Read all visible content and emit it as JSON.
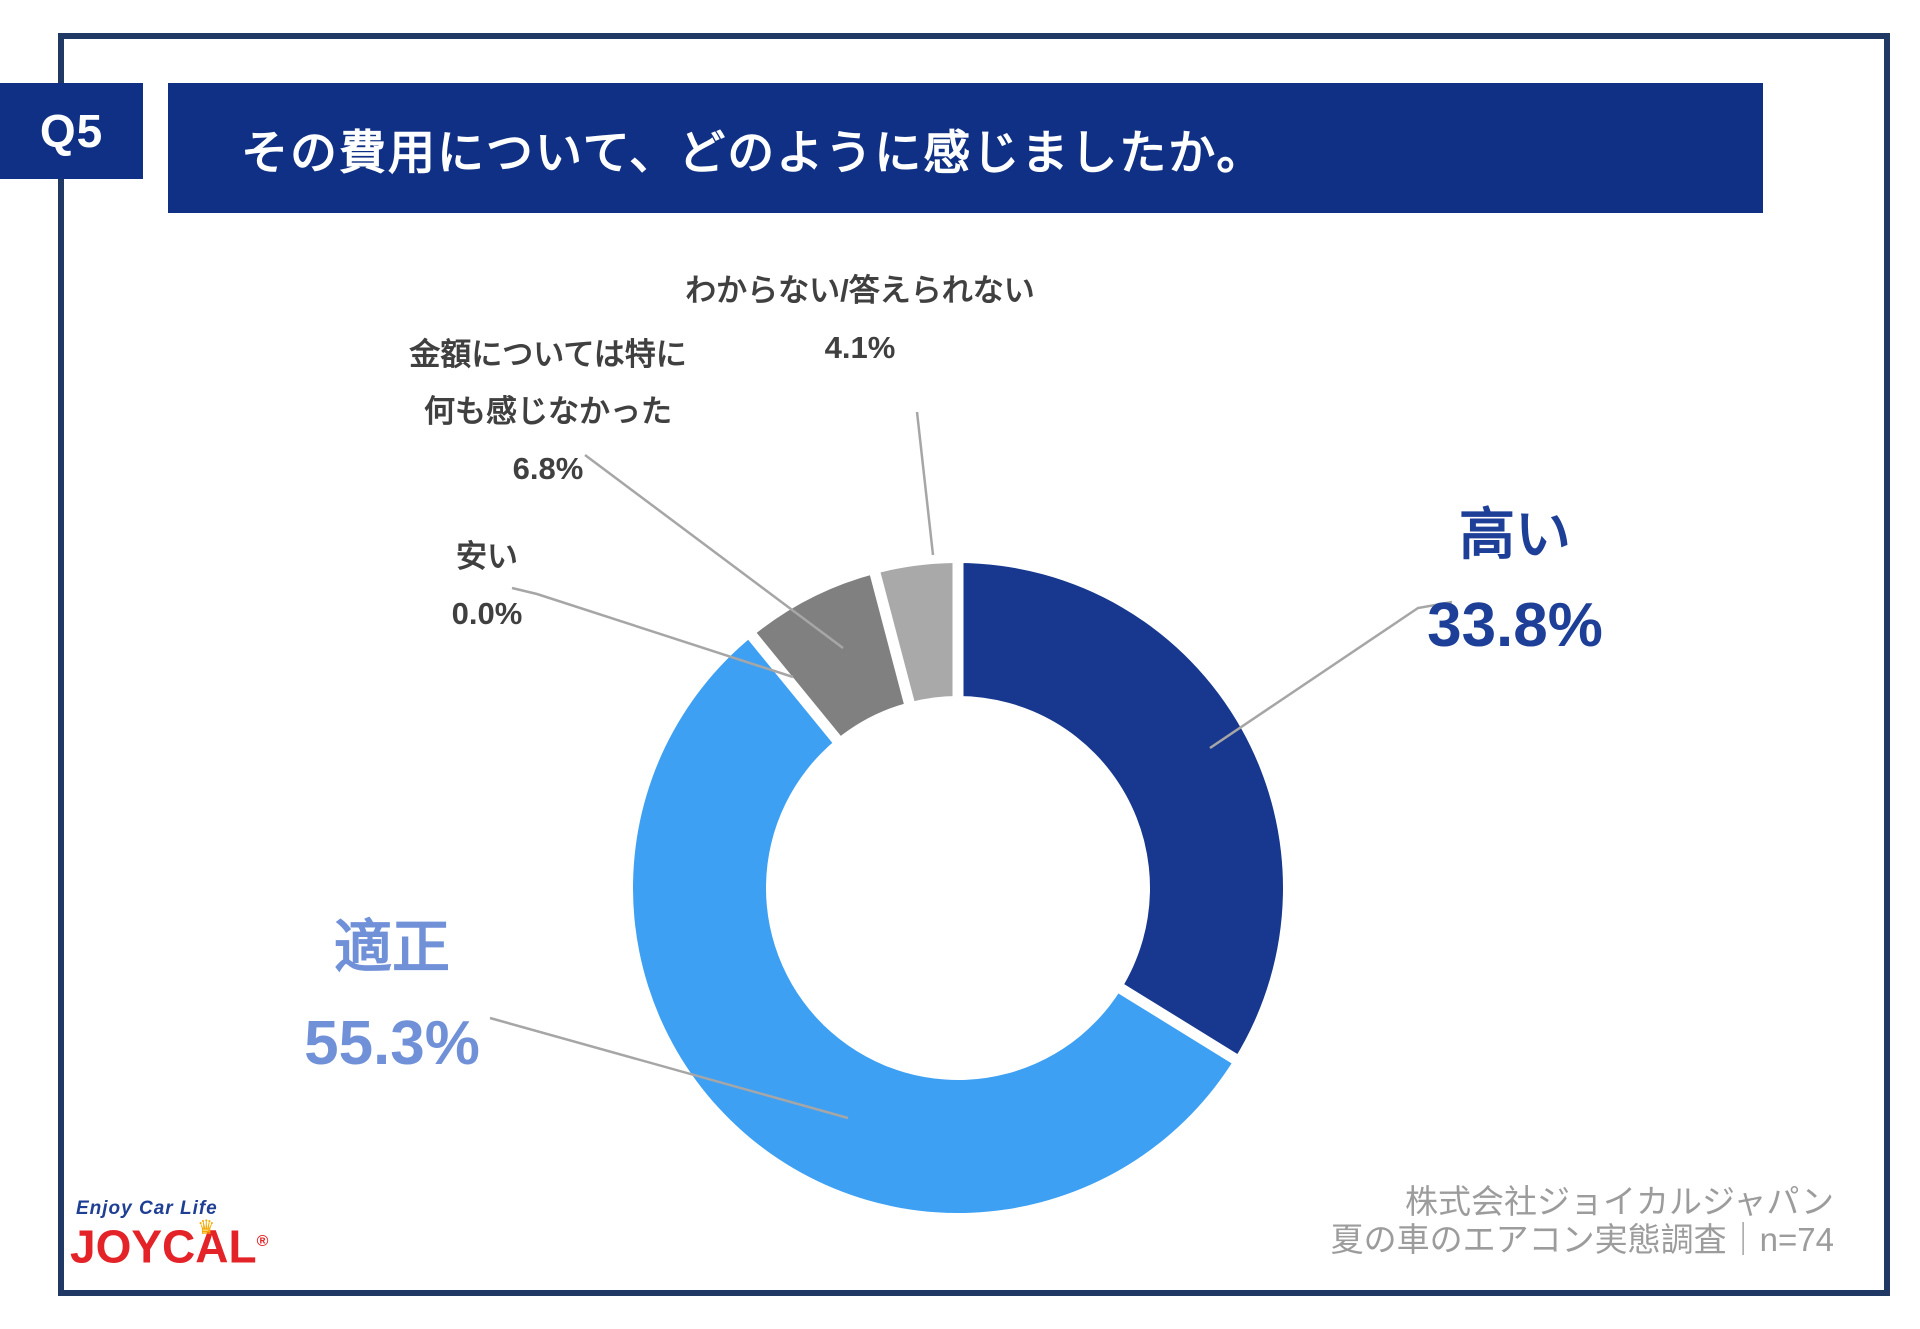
{
  "header": {
    "q_label": "Q5",
    "title": "その費用について、どのように感じましたか。"
  },
  "chart_data": {
    "type": "pie",
    "donut": true,
    "title": "その費用について、どのように感じましたか。",
    "unit": "%",
    "start_angle_deg": 0,
    "direction": "clockwise",
    "segments": [
      {
        "label": "高い",
        "value": 33.8,
        "color": "#17388E"
      },
      {
        "label": "適正",
        "value": 55.3,
        "color": "#3EA0F3"
      },
      {
        "label": "安い",
        "value": 0.0,
        "color": "#BFBFBF"
      },
      {
        "label": "金額については特に何も感じなかった",
        "value": 6.8,
        "color": "#808080"
      },
      {
        "label": "わからない/答えられない",
        "value": 4.1,
        "color": "#A9A9A9"
      }
    ]
  },
  "callouts": {
    "wakaranai": {
      "label": "わからない/答えられない",
      "value": "4.1%"
    },
    "kingaku": {
      "label_line1": "金額については特に",
      "label_line2": "何も感じなかった",
      "value": "6.8%"
    },
    "yasui": {
      "label": "安い",
      "value": "0.0%"
    },
    "takai": {
      "label": "高い",
      "value": "33.8%"
    },
    "tekisei": {
      "label": "適正",
      "value": "55.3%"
    }
  },
  "footer": {
    "credit_line1": "株式会社ジョイカルジャパン",
    "credit_line2": "夏の車のエアコン実態調査｜n=74",
    "logo": {
      "tagline": "Enjoy Car Life",
      "brand_left": "JOYC",
      "brand_a": "A",
      "brand_right": "L",
      "registered": "®",
      "crown_glyph": "♛"
    }
  },
  "colors": {
    "header_bar": "#0F3084",
    "frame_border": "#203864",
    "takai_text": "#1E3F97",
    "tekisei_text": "#7090D8",
    "callout_text": "#404040",
    "leader_line": "#A6A6A6",
    "footer_text": "#9C9C9C",
    "logo_red": "#E42328",
    "logo_blue": "#1F3F94",
    "crown_yellow": "#F2A900"
  }
}
